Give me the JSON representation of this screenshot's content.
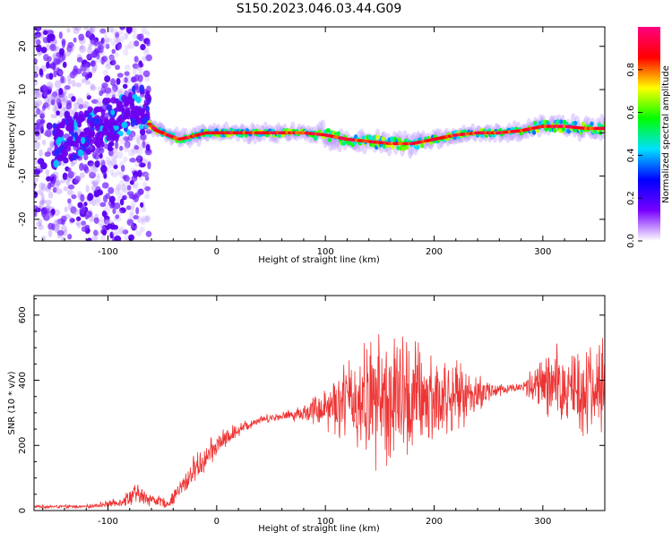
{
  "title": "S150.2023.046.03.44.G09",
  "chart_data": [
    {
      "type": "heatmap",
      "xlabel": "Height of straight line (km)",
      "ylabel": "Frequency (Hz)",
      "xlim": [
        -168,
        357
      ],
      "ylim": [
        -25,
        24.5
      ],
      "x_ticks": [
        -100,
        0,
        100,
        200,
        300
      ],
      "y_ticks": [
        -20,
        -10,
        0,
        10,
        20
      ],
      "colorbar": {
        "label": "Normalized spectral amplitude",
        "range": [
          0.0,
          1.0
        ],
        "ticks": [
          0.0,
          0.2,
          0.4,
          0.6,
          0.8
        ],
        "tick_labels": [
          "0.0",
          "0.2",
          "0.4",
          "0.6",
          "0.8"
        ],
        "colormap": [
          "#ffffff",
          "#7700ff",
          "#0000ff",
          "#00e0ff",
          "#00ff00",
          "#ffff00",
          "#ff0000",
          "#ff0080"
        ]
      },
      "ridge": {
        "x": [
          -62,
          -55,
          -45,
          -35,
          -25,
          -10,
          0,
          20,
          40,
          60,
          80,
          100,
          120,
          140,
          160,
          180,
          200,
          220,
          240,
          260,
          280,
          300,
          320,
          340,
          357
        ],
        "y": [
          2,
          0.5,
          -0.5,
          -1.5,
          -1,
          0,
          0,
          0,
          0,
          0,
          0,
          -0.5,
          -1.5,
          -2,
          -2.5,
          -2.5,
          -1.5,
          -0.5,
          0,
          0,
          0.5,
          1.5,
          1.5,
          1,
          1
        ]
      },
      "noise_region": {
        "x_range": [
          -168,
          -62
        ],
        "y_range": [
          -25,
          24.5
        ]
      }
    },
    {
      "type": "line",
      "xlabel": "Height of straight line (km)",
      "ylabel": "SNR (10 * v/v)",
      "xlim": [
        -168,
        357
      ],
      "ylim": [
        0,
        660
      ],
      "x_ticks": [
        -100,
        0,
        100,
        200,
        300
      ],
      "y_ticks": [
        0,
        200,
        400,
        600
      ],
      "series": [
        {
          "color": "#ee3333",
          "envelope_x": [
            -168,
            -120,
            -90,
            -75,
            -60,
            -45,
            -30,
            -20,
            -10,
            0,
            20,
            40,
            60,
            80,
            100,
            120,
            140,
            160,
            180,
            200,
            220,
            240,
            260,
            280,
            300,
            320,
            340,
            357
          ],
          "envelope_y": [
            12,
            12,
            25,
            50,
            35,
            20,
            80,
            130,
            160,
            200,
            250,
            280,
            290,
            300,
            320,
            340,
            340,
            340,
            340,
            340,
            350,
            360,
            370,
            380,
            380,
            380,
            380,
            380
          ],
          "spread": [
            6,
            6,
            15,
            40,
            25,
            15,
            45,
            50,
            50,
            45,
            25,
            15,
            15,
            30,
            80,
            150,
            220,
            260,
            230,
            180,
            120,
            70,
            25,
            15,
            120,
            160,
            170,
            170
          ]
        }
      ]
    }
  ]
}
